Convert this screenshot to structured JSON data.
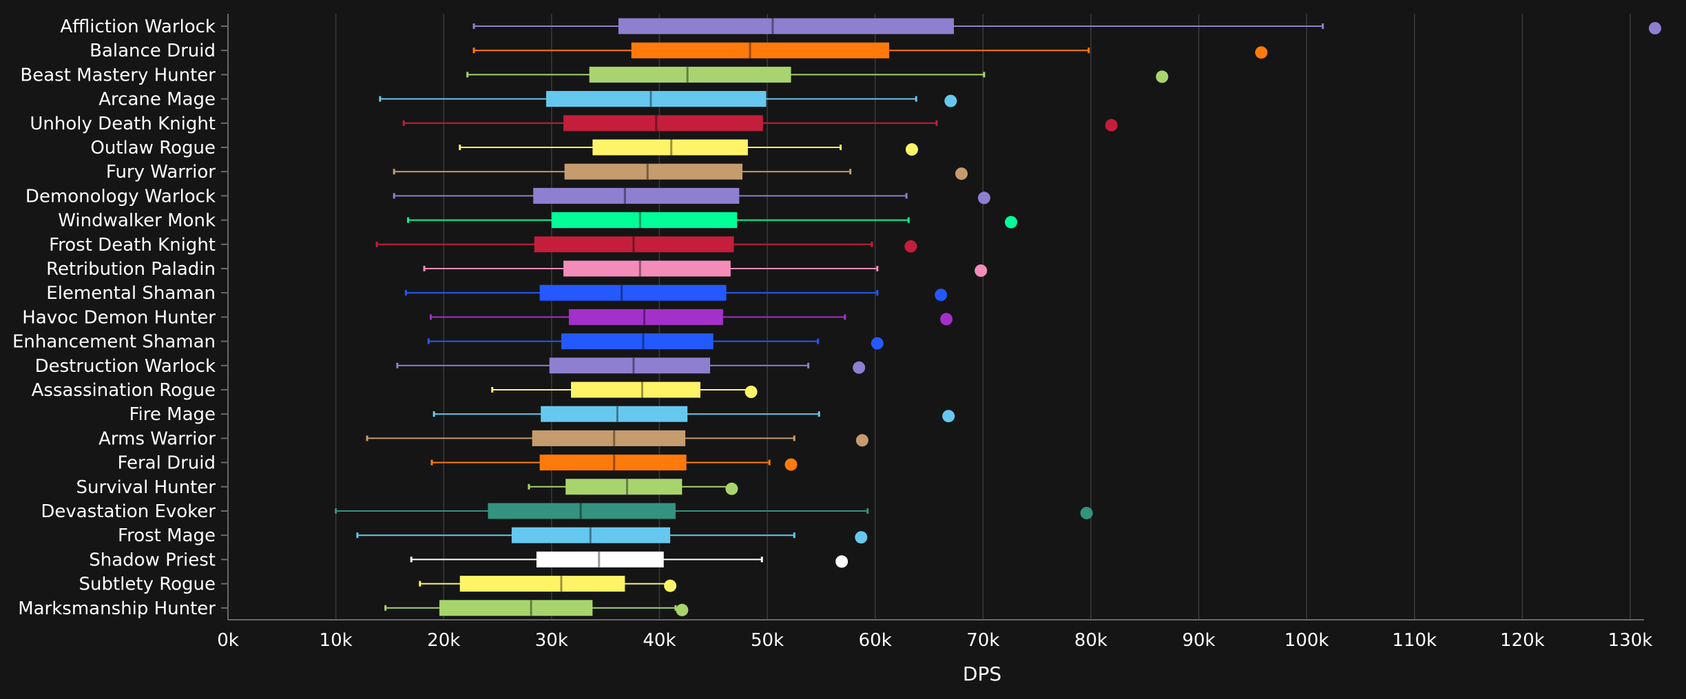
{
  "chart_data": {
    "type": "boxplot",
    "xlabel": "DPS",
    "xlim": [
      0,
      130000
    ],
    "x_ticks": [
      {
        "value": 0,
        "label": "0k"
      },
      {
        "value": 10000,
        "label": "10k"
      },
      {
        "value": 20000,
        "label": "20k"
      },
      {
        "value": 30000,
        "label": "30k"
      },
      {
        "value": 40000,
        "label": "40k"
      },
      {
        "value": 50000,
        "label": "50k"
      },
      {
        "value": 60000,
        "label": "60k"
      },
      {
        "value": 70000,
        "label": "70k"
      },
      {
        "value": 80000,
        "label": "80k"
      },
      {
        "value": 90000,
        "label": "90k"
      },
      {
        "value": 100000,
        "label": "100k"
      },
      {
        "value": 110000,
        "label": "110k"
      },
      {
        "value": 120000,
        "label": "120k"
      },
      {
        "value": 130000,
        "label": "130k"
      }
    ],
    "grid": true,
    "series": [
      {
        "name": "Affliction Warlock",
        "color": "#8f7fd0",
        "min": 22800,
        "q1": 36200,
        "median": 50500,
        "q3": 67300,
        "max": 101500,
        "outlier": 132300
      },
      {
        "name": "Balance Druid",
        "color": "#ff7a0a",
        "min": 22800,
        "q1": 37400,
        "median": 48400,
        "q3": 61300,
        "max": 79800,
        "outlier": 95800
      },
      {
        "name": "Beast Mastery Hunter",
        "color": "#a8d46e",
        "min": 22200,
        "q1": 33500,
        "median": 42600,
        "q3": 52200,
        "max": 70100,
        "outlier": 86600
      },
      {
        "name": "Arcane Mage",
        "color": "#66c8ef",
        "min": 14100,
        "q1": 29500,
        "median": 39200,
        "q3": 49900,
        "max": 63800,
        "outlier": 67000
      },
      {
        "name": "Unholy Death Knight",
        "color": "#c41e3a",
        "min": 16300,
        "q1": 31100,
        "median": 39700,
        "q3": 49600,
        "max": 65700,
        "outlier": 81900
      },
      {
        "name": "Outlaw Rogue",
        "color": "#fff468",
        "min": 21500,
        "q1": 33800,
        "median": 41100,
        "q3": 48200,
        "max": 56800,
        "outlier": 63400
      },
      {
        "name": "Fury Warrior",
        "color": "#c69b6d",
        "min": 15400,
        "q1": 31200,
        "median": 38900,
        "q3": 47700,
        "max": 57700,
        "outlier": 68000
      },
      {
        "name": "Demonology Warlock",
        "color": "#8f7fd0",
        "min": 15400,
        "q1": 28300,
        "median": 36800,
        "q3": 47400,
        "max": 62900,
        "outlier": 70100
      },
      {
        "name": "Windwalker Monk",
        "color": "#00ff98",
        "min": 16700,
        "q1": 30000,
        "median": 38200,
        "q3": 47200,
        "max": 63100,
        "outlier": 72600
      },
      {
        "name": "Frost Death Knight",
        "color": "#c41e3a",
        "min": 13800,
        "q1": 28400,
        "median": 37600,
        "q3": 46900,
        "max": 59700,
        "outlier": 63300
      },
      {
        "name": "Retribution Paladin",
        "color": "#f48cba",
        "min": 18200,
        "q1": 31100,
        "median": 38200,
        "q3": 46600,
        "max": 60200,
        "outlier": 69800
      },
      {
        "name": "Elemental Shaman",
        "color": "#2359ff",
        "min": 16500,
        "q1": 28900,
        "median": 36500,
        "q3": 46200,
        "max": 60200,
        "outlier": 66100
      },
      {
        "name": "Havoc Demon Hunter",
        "color": "#a330c9",
        "min": 18800,
        "q1": 31600,
        "median": 38600,
        "q3": 45900,
        "max": 57200,
        "outlier": 66600
      },
      {
        "name": "Enhancement Shaman",
        "color": "#2359ff",
        "min": 18600,
        "q1": 30900,
        "median": 38500,
        "q3": 45000,
        "max": 54700,
        "outlier": 60200
      },
      {
        "name": "Destruction Warlock",
        "color": "#8f7fd0",
        "min": 15700,
        "q1": 29800,
        "median": 37600,
        "q3": 44700,
        "max": 53800,
        "outlier": 58500
      },
      {
        "name": "Assassination Rogue",
        "color": "#fff468",
        "min": 24500,
        "q1": 31800,
        "median": 38400,
        "q3": 43800,
        "max": 48400,
        "outlier": 48500
      },
      {
        "name": "Fire Mage",
        "color": "#66c8ef",
        "min": 19100,
        "q1": 29000,
        "median": 36100,
        "q3": 42600,
        "max": 54800,
        "outlier": 66800
      },
      {
        "name": "Arms Warrior",
        "color": "#c69b6d",
        "min": 12900,
        "q1": 28200,
        "median": 35800,
        "q3": 42400,
        "max": 52500,
        "outlier": 58800
      },
      {
        "name": "Feral Druid",
        "color": "#ff7a0a",
        "min": 18900,
        "q1": 28900,
        "median": 35800,
        "q3": 42500,
        "max": 50200,
        "outlier": 52200
      },
      {
        "name": "Survival Hunter",
        "color": "#a8d46e",
        "min": 27900,
        "q1": 31300,
        "median": 37000,
        "q3": 42100,
        "max": 46600,
        "outlier": 46700
      },
      {
        "name": "Devastation Evoker",
        "color": "#33937f",
        "min": 10000,
        "q1": 24100,
        "median": 32700,
        "q3": 41500,
        "max": 59300,
        "outlier": 79600
      },
      {
        "name": "Frost Mage",
        "color": "#66c8ef",
        "min": 12000,
        "q1": 26300,
        "median": 33600,
        "q3": 41000,
        "max": 52500,
        "outlier": 58700
      },
      {
        "name": "Shadow Priest",
        "color": "#ffffff",
        "min": 17000,
        "q1": 28600,
        "median": 34400,
        "q3": 40400,
        "max": 49500,
        "outlier": 56900
      },
      {
        "name": "Subtlety Rogue",
        "color": "#fff468",
        "min": 17800,
        "q1": 21500,
        "median": 30900,
        "q3": 36800,
        "max": 40900,
        "outlier": 41000
      },
      {
        "name": "Marksmanship Hunter",
        "color": "#a8d46e",
        "min": 14600,
        "q1": 19600,
        "median": 28100,
        "q3": 33800,
        "max": 41500,
        "outlier": 42100
      }
    ]
  }
}
